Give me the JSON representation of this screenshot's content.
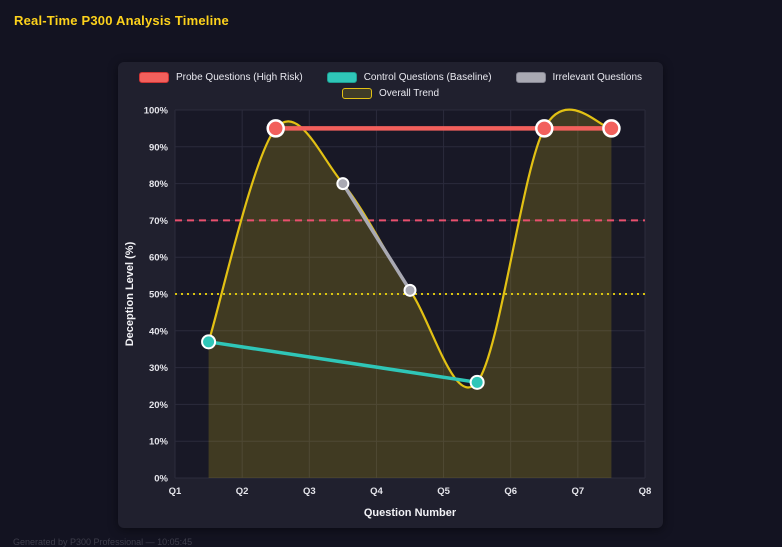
{
  "page": {
    "title": "Real-Time P300 Analysis Timeline",
    "footer": "Generated by P300 Professional — 10:05:45"
  },
  "chart_data": {
    "type": "line",
    "xlabel": "Question Number",
    "ylabel": "Deception Level (%)",
    "x_ticks": [
      "Q1",
      "Q2",
      "Q3",
      "Q4",
      "Q5",
      "Q6",
      "Q7",
      "Q8"
    ],
    "x_range": [
      1,
      8
    ],
    "ylim": [
      0,
      100
    ],
    "y_ticks": [
      "0%",
      "10%",
      "20%",
      "30%",
      "40%",
      "50%",
      "60%",
      "70%",
      "80%",
      "90%",
      "100%"
    ],
    "grid": true,
    "legend_position": "top",
    "series": [
      {
        "name": "Probe Questions (High Risk)",
        "color": "#f2605c",
        "swatch_border": "#d03535",
        "x": [
          2.5,
          6.5,
          7.5
        ],
        "values": [
          95,
          95,
          95
        ],
        "line_width": 4.5,
        "point_radius": 8
      },
      {
        "name": "Control Questions (Baseline)",
        "color": "#2fc6b8",
        "swatch_border": "#1d9e92",
        "x": [
          1.5,
          5.5
        ],
        "values": [
          37,
          26
        ],
        "line_width": 3.5,
        "point_radius": 6.5
      },
      {
        "name": "Irrelevant Questions",
        "color": "#a9a9b3",
        "swatch_border": "#83838f",
        "x": [
          3.5,
          4.5
        ],
        "values": [
          80,
          51
        ],
        "line_width": 3.5,
        "point_radius": 5.5
      }
    ],
    "trend": {
      "name": "Overall Trend",
      "color": "#e2c114",
      "swatch_fill": "#3f3c28",
      "x": [
        1.5,
        2.5,
        3.5,
        4.5,
        5.5,
        6.5,
        7.5
      ],
      "values": [
        37,
        95,
        80,
        51,
        26,
        95,
        95
      ],
      "smooth": true,
      "area_fill_opacity": 0.2,
      "line_width": 2.2
    },
    "thresholds": [
      {
        "value": 70,
        "color": "#e9506e",
        "style": "dashed"
      },
      {
        "value": 50,
        "color": "#d9c40f",
        "style": "dotted"
      }
    ]
  }
}
